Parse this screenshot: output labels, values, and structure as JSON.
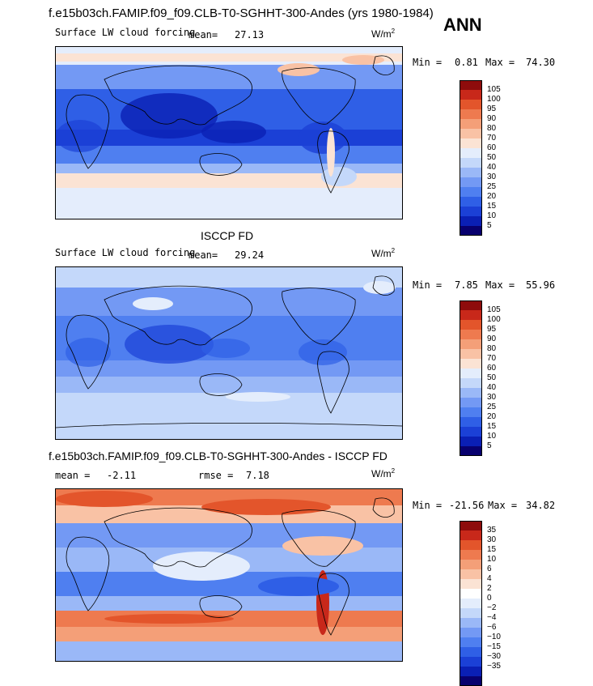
{
  "header": {
    "title": "f.e15b03ch.FAMIP.f09_f09.CLB-T0-SGHHT-300-Andes (yrs 1980-1984)",
    "season": "ANN"
  },
  "colors": {
    "palette_abs": [
      "#08006e",
      "#0a1fb4",
      "#1b40d6",
      "#2f5fe6",
      "#4f7ff0",
      "#7399f4",
      "#9ab8f7",
      "#c4d8fa",
      "#e4edfc",
      "#fbe3d4",
      "#f9c2a5",
      "#f49f78",
      "#ee7a4f",
      "#e3552b",
      "#c8281a",
      "#8e0c0c"
    ],
    "palette_diff": [
      "#08006e",
      "#0a1fb4",
      "#1b40d6",
      "#2f5fe6",
      "#4f7ff0",
      "#7399f4",
      "#9ab8f7",
      "#c4d8fa",
      "#e4edfc",
      "#ffffff",
      "#fbe3d4",
      "#f9c2a5",
      "#f49f78",
      "#ee7a4f",
      "#e3552b",
      "#c8281a",
      "#8e0c0c"
    ]
  },
  "chart_data": [
    {
      "type": "heatmap",
      "panel": "model",
      "variable": "Surface LW cloud forcing",
      "mean_label": "mean=",
      "mean": "27.13",
      "units": "W/m",
      "units_sup": "2",
      "stats": {
        "min_label": "Min =",
        "min": "0.81",
        "max_label": "Max =",
        "max": "74.30"
      },
      "colorbar_levels": [
        "105",
        "100",
        "95",
        "90",
        "80",
        "70",
        "60",
        "50",
        "40",
        "30",
        "25",
        "20",
        "15",
        "10",
        "5"
      ]
    },
    {
      "type": "heatmap",
      "panel": "observation",
      "panel_title": "ISCCP FD",
      "variable": "Surface LW cloud forcing",
      "mean_label": "mean=",
      "mean": "29.24",
      "units": "W/m",
      "units_sup": "2",
      "stats": {
        "min_label": "Min =",
        "min": "7.85",
        "max_label": "Max =",
        "max": "55.96"
      },
      "colorbar_levels": [
        "105",
        "100",
        "95",
        "90",
        "80",
        "70",
        "60",
        "50",
        "40",
        "30",
        "25",
        "20",
        "15",
        "10",
        "5"
      ]
    },
    {
      "type": "heatmap",
      "panel": "difference",
      "panel_title": "f.e15b03ch.FAMIP.f09_f09.CLB-T0-SGHHT-300-Andes - ISCCP FD",
      "mean_label": "mean =",
      "mean": "-2.11",
      "rmse_label": "rmse =",
      "rmse": "7.18",
      "units": "W/m",
      "units_sup": "2",
      "stats": {
        "min_label": "Min =",
        "min": "-21.56",
        "max_label": "Max =",
        "max": "34.82"
      },
      "colorbar_levels": [
        "35",
        "30",
        "15",
        "10",
        "6",
        "4",
        "2",
        "0",
        "−2",
        "−4",
        "−6",
        "−10",
        "−15",
        "−30",
        "−35"
      ]
    }
  ]
}
